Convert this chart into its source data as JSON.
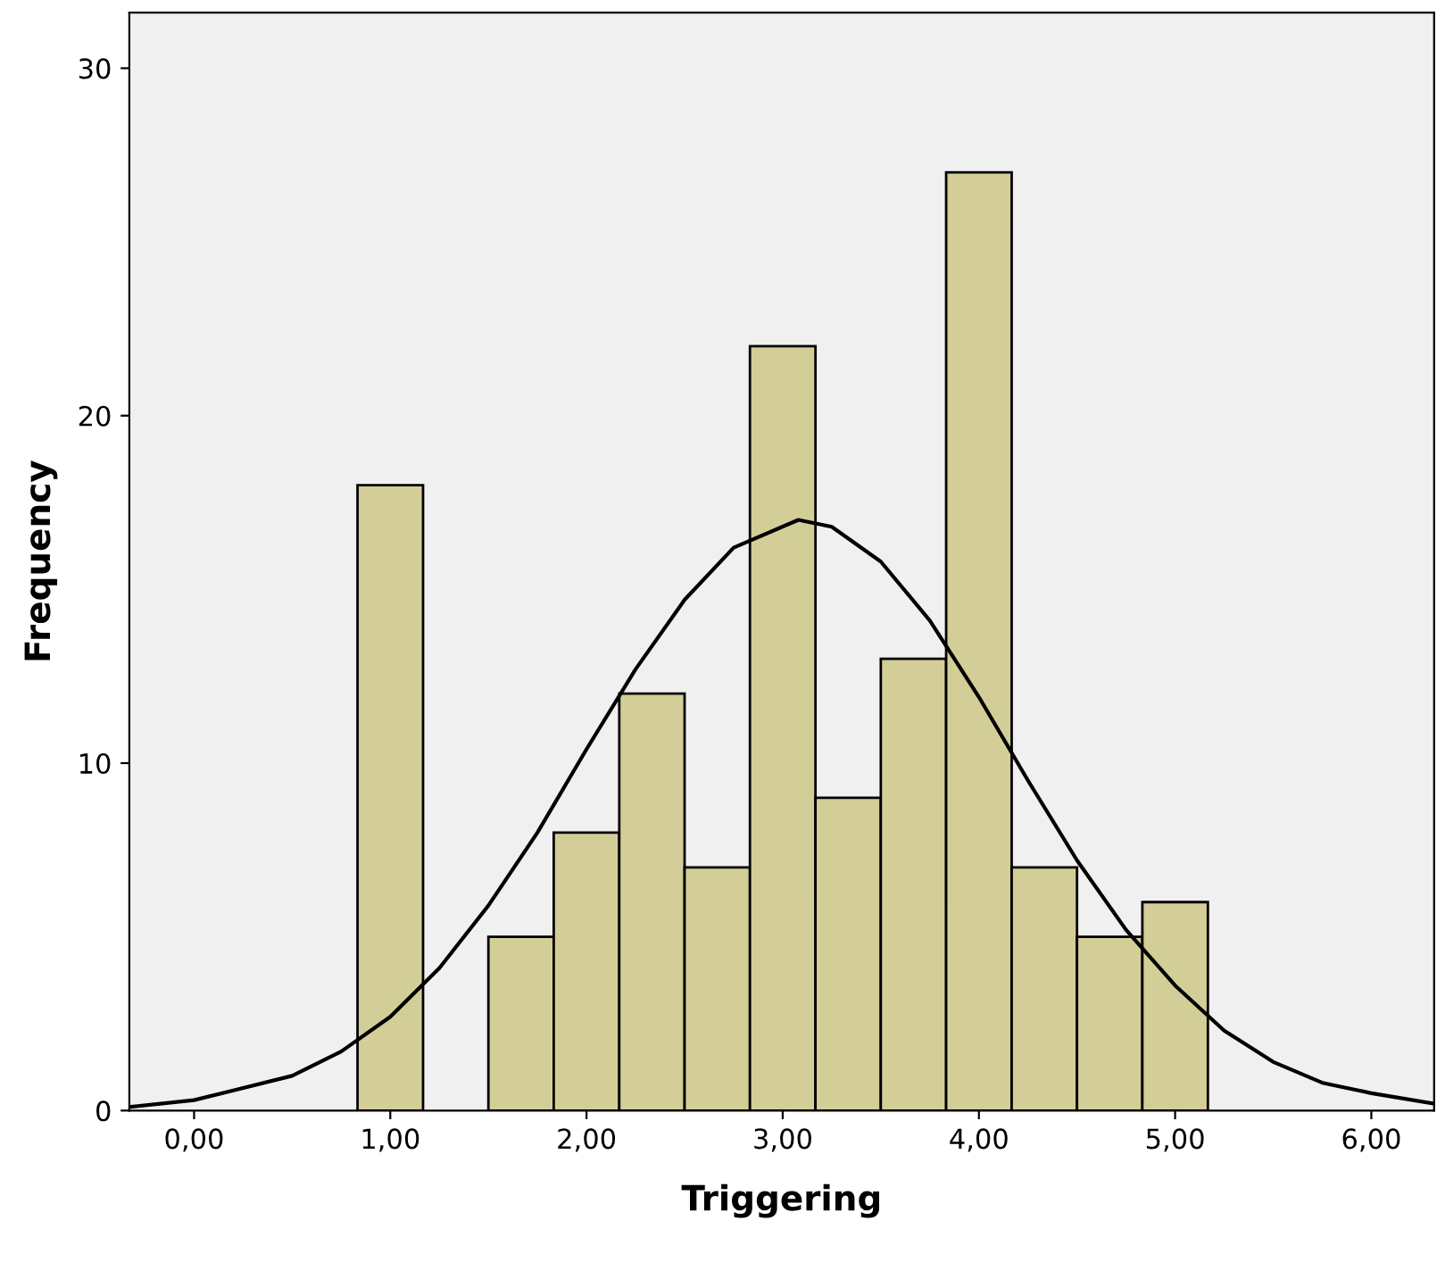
{
  "chart_data": {
    "type": "histogram",
    "xlabel": "Triggering",
    "ylabel": "Frequency",
    "series": [
      {
        "color": "#d3ce97",
        "bins": [
          0.833,
          1.167,
          1.5,
          1.833,
          2.167,
          2.5,
          2.833,
          3.167,
          3.5,
          3.833,
          4.167,
          4.5,
          4.833,
          5.167
        ],
        "values": [
          18,
          0,
          5,
          8,
          12,
          7,
          22,
          9,
          13,
          27,
          7,
          5,
          6
        ]
      },
      {
        "type": "line",
        "color": "#000000",
        "x": [
          -0.33,
          0,
          0.5,
          0.75,
          1.0,
          1.25,
          1.5,
          1.75,
          2.0,
          2.25,
          2.5,
          2.75,
          3.08,
          3.25,
          3.5,
          3.75,
          4.0,
          4.25,
          4.5,
          4.75,
          5.0,
          5.25,
          5.5,
          5.75,
          6.0,
          6.32
        ],
        "values": [
          0.1,
          0.3,
          1.0,
          1.7,
          2.7,
          4.1,
          5.9,
          8.0,
          10.4,
          12.7,
          14.7,
          16.2,
          17.0,
          16.8,
          15.8,
          14.1,
          11.9,
          9.5,
          7.2,
          5.2,
          3.6,
          2.3,
          1.4,
          0.8,
          0.5,
          0.2
        ]
      }
    ],
    "xlim": [
      -0.33,
      6.32
    ],
    "ylim": [
      0,
      31.6
    ],
    "xticks": [
      {
        "value": 0,
        "label": "0,00"
      },
      {
        "value": 1,
        "label": "1,00"
      },
      {
        "value": 2,
        "label": "2,00"
      },
      {
        "value": 3,
        "label": "3,00"
      },
      {
        "value": 4,
        "label": "4,00"
      },
      {
        "value": 5,
        "label": "5,00"
      },
      {
        "value": 6,
        "label": "6,00"
      }
    ],
    "yticks": [
      0,
      10,
      20,
      30
    ],
    "grid": false,
    "legend": false
  }
}
